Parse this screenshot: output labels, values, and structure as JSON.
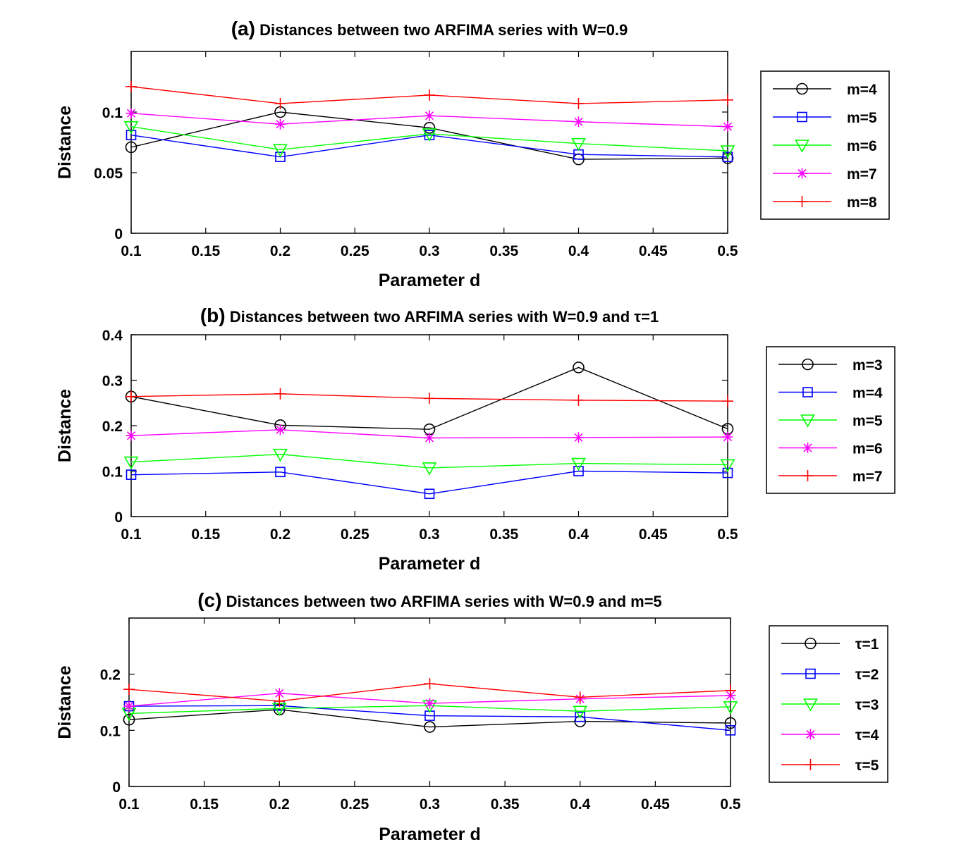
{
  "chart_data": [
    {
      "type": "line",
      "title_prefix": "(a)",
      "title": "Distances between two ARFIMA series with W=0.9",
      "xlabel": "Parameter d",
      "ylabel": "Distance",
      "x": [
        0.1,
        0.2,
        0.3,
        0.4,
        0.5
      ],
      "xlim": [
        0.1,
        0.5
      ],
      "ylim": [
        0,
        0.15
      ],
      "xticks": [
        "0.1",
        "0.15",
        "0.2",
        "0.25",
        "0.3",
        "0.35",
        "0.4",
        "0.45",
        "0.5"
      ],
      "yticks": [
        "0",
        "0.05",
        "0.1"
      ],
      "legend_position": "right",
      "series": [
        {
          "name": "m=4",
          "color": "#000000",
          "marker": "circle",
          "values": [
            0.071,
            0.1,
            0.087,
            0.061,
            0.062
          ]
        },
        {
          "name": "m=5",
          "color": "#0000ff",
          "marker": "square",
          "values": [
            0.081,
            0.063,
            0.081,
            0.065,
            0.063
          ]
        },
        {
          "name": "m=6",
          "color": "#00ff00",
          "marker": "triangle-down",
          "values": [
            0.088,
            0.069,
            0.082,
            0.074,
            0.068
          ]
        },
        {
          "name": "m=7",
          "color": "#ff00ff",
          "marker": "asterisk",
          "values": [
            0.099,
            0.09,
            0.097,
            0.092,
            0.088
          ]
        },
        {
          "name": "m=8",
          "color": "#ff0000",
          "marker": "plus",
          "values": [
            0.121,
            0.107,
            0.114,
            0.107,
            0.11
          ]
        }
      ]
    },
    {
      "type": "line",
      "title_prefix": "(b)",
      "title": "Distances between two ARFIMA series with W=0.9 and τ=1",
      "xlabel": "Parameter d",
      "ylabel": "Distance",
      "x": [
        0.1,
        0.2,
        0.3,
        0.4,
        0.5
      ],
      "xlim": [
        0.1,
        0.5
      ],
      "ylim": [
        0,
        0.4
      ],
      "xticks": [
        "0.1",
        "0.15",
        "0.2",
        "0.25",
        "0.3",
        "0.35",
        "0.4",
        "0.45",
        "0.5"
      ],
      "yticks": [
        "0",
        "0.1",
        "0.2",
        "0.3",
        "0.4"
      ],
      "legend_position": "right",
      "series": [
        {
          "name": "m=3",
          "color": "#000000",
          "marker": "circle",
          "values": [
            0.264,
            0.201,
            0.192,
            0.328,
            0.193
          ]
        },
        {
          "name": "m=4",
          "color": "#0000ff",
          "marker": "square",
          "values": [
            0.092,
            0.098,
            0.05,
            0.1,
            0.096
          ]
        },
        {
          "name": "m=5",
          "color": "#00ff00",
          "marker": "triangle-down",
          "values": [
            0.12,
            0.137,
            0.107,
            0.117,
            0.114
          ]
        },
        {
          "name": "m=6",
          "color": "#ff00ff",
          "marker": "asterisk",
          "values": [
            0.178,
            0.191,
            0.173,
            0.174,
            0.175
          ]
        },
        {
          "name": "m=7",
          "color": "#ff0000",
          "marker": "plus",
          "values": [
            0.264,
            0.27,
            0.26,
            0.256,
            0.254
          ]
        }
      ]
    },
    {
      "type": "line",
      "title_prefix": "(c)",
      "title": "Distances between two ARFIMA series with W=0.9 and m=5",
      "xlabel": "Parameter d",
      "ylabel": "Distance",
      "x": [
        0.1,
        0.2,
        0.3,
        0.4,
        0.5
      ],
      "xlim": [
        0.1,
        0.5
      ],
      "ylim": [
        0,
        0.3
      ],
      "xticks": [
        "0.1",
        "0.15",
        "0.2",
        "0.25",
        "0.3",
        "0.35",
        "0.4",
        "0.45",
        "0.5"
      ],
      "yticks": [
        "0",
        "0.1",
        "0.2"
      ],
      "legend_position": "right",
      "series": [
        {
          "name": "τ=1",
          "color": "#000000",
          "marker": "circle",
          "values": [
            0.119,
            0.137,
            0.106,
            0.116,
            0.113
          ]
        },
        {
          "name": "τ=2",
          "color": "#0000ff",
          "marker": "square",
          "values": [
            0.143,
            0.144,
            0.126,
            0.124,
            0.1
          ]
        },
        {
          "name": "τ=3",
          "color": "#00ff00",
          "marker": "triangle-down",
          "values": [
            0.13,
            0.139,
            0.144,
            0.134,
            0.142
          ]
        },
        {
          "name": "τ=4",
          "color": "#ff00ff",
          "marker": "asterisk",
          "values": [
            0.143,
            0.166,
            0.148,
            0.156,
            0.162
          ]
        },
        {
          "name": "τ=5",
          "color": "#ff0000",
          "marker": "plus",
          "values": [
            0.173,
            0.152,
            0.183,
            0.159,
            0.171
          ]
        }
      ]
    }
  ]
}
